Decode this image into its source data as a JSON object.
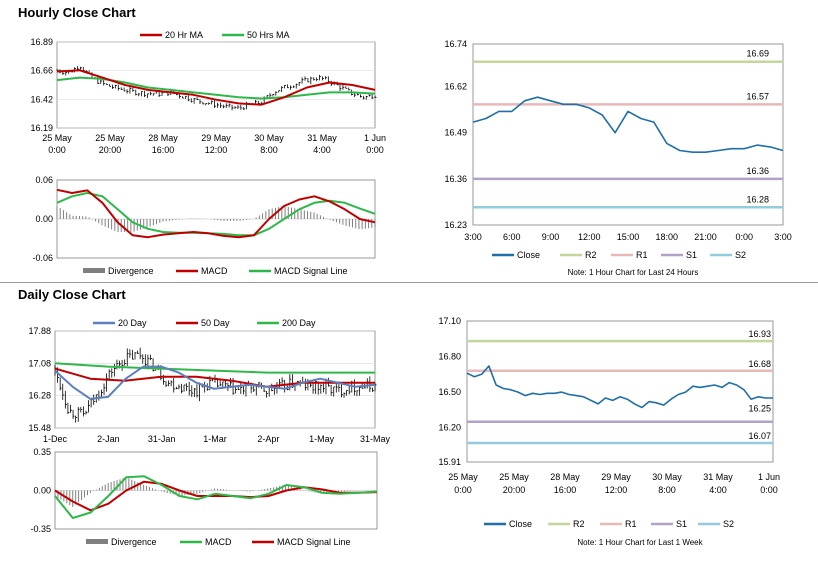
{
  "hourly": {
    "title": "Hourly Close Chart",
    "price": {
      "legend": [
        "20 Hr MA",
        "50 Hrs MA"
      ],
      "yticks": [
        "16.89",
        "16.66",
        "16.42",
        "16.19"
      ],
      "xticks": [
        [
          "25 May",
          "0:00"
        ],
        [
          "25 May",
          "20:00"
        ],
        [
          "28 May",
          "16:00"
        ],
        [
          "29 May",
          "12:00"
        ],
        [
          "30 May",
          "8:00"
        ],
        [
          "31 May",
          "4:00"
        ],
        [
          "1 Jun",
          "0:00"
        ]
      ]
    },
    "macd": {
      "yticks": [
        "0.06",
        "0.00",
        "-0.06"
      ],
      "legend": [
        "Divergence",
        "MACD",
        "MACD Signal Line"
      ]
    },
    "levels_chart": {
      "yticks": [
        "16.74",
        "16.62",
        "16.49",
        "16.36",
        "16.23"
      ],
      "xticks": [
        "3:00",
        "6:00",
        "9:00",
        "12:00",
        "15:00",
        "18:00",
        "21:00",
        "0:00",
        "3:00"
      ],
      "levels": [
        {
          "name": "R2",
          "value": "16.69",
          "color": "#c3d69b"
        },
        {
          "name": "R1",
          "value": "16.57",
          "color": "#e6b9b8"
        },
        {
          "name": "S1",
          "value": "16.36",
          "color": "#b3a2c7"
        },
        {
          "name": "S2",
          "value": "16.28",
          "color": "#93cddd"
        }
      ],
      "legend": [
        "Close",
        "R2",
        "R1",
        "S1",
        "S2"
      ],
      "note": "Note: 1 Hour Chart for Last 24 Hours"
    }
  },
  "daily": {
    "title": "Daily Close Chart",
    "price": {
      "legend": [
        "20 Day",
        "50 Day",
        "200 Day"
      ],
      "yticks": [
        "17.88",
        "17.08",
        "16.28",
        "15.48"
      ],
      "xticks": [
        "1-Dec",
        "2-Jan",
        "31-Jan",
        "1-Mar",
        "2-Apr",
        "1-May",
        "31-May"
      ]
    },
    "macd": {
      "yticks": [
        "0.35",
        "0.00",
        "-0.35"
      ],
      "legend": [
        "Divergence",
        "MACD",
        "MACD Signal Line"
      ]
    },
    "levels_chart": {
      "yticks": [
        "17.10",
        "16.80",
        "16.50",
        "16.20",
        "15.91"
      ],
      "xticks": [
        [
          "25 May",
          "0:00"
        ],
        [
          "25 May",
          "20:00"
        ],
        [
          "28 May",
          "16:00"
        ],
        [
          "29 May",
          "12:00"
        ],
        [
          "30 May",
          "8:00"
        ],
        [
          "31 May",
          "4:00"
        ],
        [
          "1 Jun",
          "0:00"
        ]
      ],
      "levels": [
        {
          "name": "R2",
          "value": "16.93",
          "color": "#c3d69b"
        },
        {
          "name": "R1",
          "value": "16.68",
          "color": "#e6b9b8"
        },
        {
          "name": "S1",
          "value": "16.25",
          "color": "#b3a2c7"
        },
        {
          "name": "S2",
          "value": "16.07",
          "color": "#93cddd"
        }
      ],
      "legend": [
        "Close",
        "R2",
        "R1",
        "S1",
        "S2"
      ],
      "note": "Note: 1 Hour Chart for Last 1 Week"
    }
  },
  "colors": {
    "ma_short": "#c00000",
    "ma_mid": "#2eb84a",
    "ma_blue": "#5b7fbf",
    "close": "#1f6fa8",
    "divergence": "#7f7f7f",
    "axis": "#808080"
  },
  "chart_data": [
    {
      "id": "hourly-price",
      "type": "line",
      "title": "Hourly Close Chart",
      "ylim": [
        16.19,
        16.89
      ],
      "x_range_hours": [
        0,
        168
      ],
      "series": [
        {
          "name": "Price (OHLC bars)",
          "x_hours": [
            0,
            6,
            12,
            18,
            24,
            30,
            36,
            42,
            48,
            54,
            60,
            66,
            72,
            78,
            84,
            90,
            96,
            102,
            108,
            114,
            120,
            126,
            132,
            138,
            144,
            150,
            156,
            162,
            168
          ],
          "values": [
            16.66,
            16.64,
            16.7,
            16.6,
            16.55,
            16.52,
            16.5,
            16.48,
            16.47,
            16.47,
            16.48,
            16.45,
            16.42,
            16.4,
            16.38,
            16.36,
            16.35,
            16.38,
            16.4,
            16.48,
            16.52,
            16.55,
            16.58,
            16.6,
            16.57,
            16.52,
            16.47,
            16.44,
            16.46
          ]
        },
        {
          "name": "20 Hr MA",
          "x_hours": [
            0,
            12,
            24,
            36,
            48,
            60,
            72,
            84,
            96,
            108,
            120,
            132,
            144,
            156,
            168
          ],
          "values": [
            16.65,
            16.66,
            16.6,
            16.54,
            16.5,
            16.48,
            16.46,
            16.42,
            16.39,
            16.38,
            16.44,
            16.52,
            16.56,
            16.54,
            16.5
          ]
        },
        {
          "name": "50 Hrs MA",
          "x_hours": [
            0,
            12,
            24,
            36,
            48,
            60,
            72,
            84,
            96,
            108,
            120,
            132,
            144,
            156,
            168
          ],
          "values": [
            16.58,
            16.6,
            16.59,
            16.56,
            16.52,
            16.5,
            16.48,
            16.46,
            16.44,
            16.43,
            16.44,
            16.46,
            16.48,
            16.48,
            16.47
          ]
        }
      ]
    },
    {
      "id": "hourly-macd",
      "type": "line",
      "ylim": [
        -0.06,
        0.06
      ],
      "x_range_hours": [
        0,
        168
      ],
      "series": [
        {
          "name": "MACD",
          "x_hours": [
            0,
            8,
            16,
            24,
            32,
            40,
            48,
            56,
            64,
            72,
            80,
            88,
            96,
            104,
            112,
            120,
            128,
            136,
            144,
            152,
            160,
            168
          ],
          "values": [
            0.045,
            0.04,
            0.044,
            0.025,
            -0.005,
            -0.025,
            -0.028,
            -0.024,
            -0.022,
            -0.02,
            -0.022,
            -0.026,
            -0.028,
            -0.025,
            0.0,
            0.02,
            0.03,
            0.035,
            0.027,
            0.015,
            0.0,
            -0.005
          ]
        },
        {
          "name": "MACD Signal Line",
          "x_hours": [
            0,
            8,
            16,
            24,
            32,
            40,
            48,
            56,
            64,
            72,
            80,
            88,
            96,
            104,
            112,
            120,
            128,
            136,
            144,
            152,
            160,
            168
          ],
          "values": [
            0.025,
            0.035,
            0.04,
            0.035,
            0.015,
            -0.005,
            -0.015,
            -0.02,
            -0.021,
            -0.021,
            -0.022,
            -0.023,
            -0.025,
            -0.025,
            -0.015,
            0.0,
            0.015,
            0.025,
            0.028,
            0.025,
            0.016,
            0.008
          ]
        },
        {
          "name": "Divergence",
          "x_hours": [
            0,
            8,
            16,
            24,
            32,
            40,
            48,
            56,
            64,
            72,
            80,
            88,
            96,
            104,
            112,
            120,
            128,
            136,
            144,
            152,
            160,
            168
          ],
          "values": [
            0.02,
            0.005,
            0.004,
            -0.01,
            -0.02,
            -0.02,
            -0.013,
            -0.004,
            -0.001,
            0.001,
            0.0,
            -0.003,
            -0.003,
            0.0,
            0.015,
            0.02,
            0.015,
            0.01,
            -0.001,
            -0.01,
            -0.016,
            -0.013
          ]
        }
      ]
    },
    {
      "id": "hourly-levels",
      "type": "line",
      "ylim": [
        16.23,
        16.74
      ],
      "x_range_hours": [
        0,
        24
      ],
      "x_tick_labels": [
        "3:00",
        "6:00",
        "9:00",
        "12:00",
        "15:00",
        "18:00",
        "21:00",
        "0:00",
        "3:00"
      ],
      "series": [
        {
          "name": "Close",
          "x_hours": [
            0,
            1,
            2,
            3,
            4,
            5,
            6,
            7,
            8,
            9,
            10,
            11,
            12,
            13,
            14,
            15,
            16,
            17,
            18,
            19,
            20,
            21,
            22,
            23,
            24
          ],
          "values": [
            16.52,
            16.53,
            16.55,
            16.55,
            16.58,
            16.59,
            16.58,
            16.57,
            16.57,
            16.56,
            16.54,
            16.49,
            16.55,
            16.53,
            16.52,
            16.46,
            16.44,
            16.435,
            16.435,
            16.44,
            16.445,
            16.445,
            16.455,
            16.45,
            16.44
          ]
        },
        {
          "name": "R2",
          "values": [
            16.69
          ]
        },
        {
          "name": "R1",
          "values": [
            16.57
          ]
        },
        {
          "name": "S1",
          "values": [
            16.36
          ]
        },
        {
          "name": "S2",
          "values": [
            16.28
          ]
        }
      ]
    },
    {
      "id": "daily-price",
      "type": "line",
      "title": "Daily Close Chart",
      "ylim": [
        15.48,
        17.88
      ],
      "x_range_days": [
        0,
        181
      ],
      "series": [
        {
          "name": "Price (OHLC bars)",
          "x_days": [
            0,
            8,
            16,
            24,
            32,
            40,
            48,
            56,
            64,
            72,
            80,
            88,
            96,
            104,
            112,
            120,
            128,
            136,
            144,
            152,
            160,
            168,
            176,
            181
          ],
          "values": [
            16.9,
            15.9,
            15.8,
            16.3,
            16.9,
            17.2,
            17.3,
            17.0,
            16.6,
            16.5,
            16.4,
            16.6,
            16.5,
            16.4,
            16.5,
            16.4,
            16.5,
            16.6,
            16.5,
            16.5,
            16.4,
            16.5,
            16.5,
            16.5
          ]
        },
        {
          "name": "20 Day",
          "x_days": [
            0,
            10,
            20,
            30,
            40,
            50,
            60,
            70,
            80,
            90,
            100,
            110,
            120,
            130,
            140,
            150,
            160,
            170,
            181
          ],
          "values": [
            16.9,
            16.5,
            16.2,
            16.25,
            16.7,
            17.0,
            17.0,
            16.85,
            16.6,
            16.45,
            16.5,
            16.55,
            16.5,
            16.45,
            16.6,
            16.7,
            16.6,
            16.5,
            16.55
          ]
        },
        {
          "name": "50 Day",
          "x_days": [
            0,
            20,
            40,
            60,
            80,
            100,
            120,
            140,
            160,
            181
          ],
          "values": [
            16.95,
            16.7,
            16.65,
            16.75,
            16.75,
            16.65,
            16.5,
            16.6,
            16.6,
            16.6
          ]
        },
        {
          "name": "200 Day",
          "x_days": [
            0,
            30,
            60,
            90,
            120,
            150,
            181
          ],
          "values": [
            17.08,
            17.0,
            16.95,
            16.9,
            16.85,
            16.85,
            16.85
          ]
        }
      ]
    },
    {
      "id": "daily-macd",
      "type": "line",
      "ylim": [
        -0.35,
        0.35
      ],
      "x_range_days": [
        0,
        181
      ],
      "series": [
        {
          "name": "MACD",
          "x_days": [
            0,
            10,
            20,
            30,
            40,
            50,
            60,
            70,
            80,
            90,
            100,
            110,
            120,
            130,
            140,
            150,
            160,
            170,
            181
          ],
          "values": [
            -0.05,
            -0.25,
            -0.2,
            -0.05,
            0.12,
            0.13,
            0.05,
            -0.05,
            -0.08,
            -0.03,
            -0.05,
            -0.07,
            -0.03,
            0.05,
            0.03,
            -0.02,
            -0.03,
            -0.02,
            -0.01
          ]
        },
        {
          "name": "MACD Signal Line",
          "x_days": [
            0,
            10,
            20,
            30,
            40,
            50,
            60,
            70,
            80,
            90,
            100,
            110,
            120,
            130,
            140,
            150,
            160,
            170,
            181
          ],
          "values": [
            0.0,
            -0.1,
            -0.18,
            -0.12,
            0.0,
            0.08,
            0.06,
            0.0,
            -0.05,
            -0.05,
            -0.05,
            -0.06,
            -0.05,
            0.0,
            0.03,
            0.01,
            -0.02,
            -0.02,
            -0.015
          ]
        },
        {
          "name": "Divergence",
          "x_days": [
            0,
            10,
            20,
            30,
            40,
            50,
            60,
            70,
            80,
            90,
            100,
            110,
            120,
            130,
            140,
            150,
            160,
            170,
            181
          ],
          "values": [
            -0.05,
            -0.15,
            -0.02,
            0.07,
            0.12,
            0.05,
            -0.01,
            -0.05,
            -0.03,
            0.02,
            0.0,
            -0.01,
            0.02,
            0.05,
            0.0,
            -0.03,
            -0.01,
            0.0,
            0.005
          ]
        }
      ]
    },
    {
      "id": "daily-levels",
      "type": "line",
      "ylim": [
        15.91,
        17.1
      ],
      "x_range_hours": [
        0,
        168
      ],
      "series": [
        {
          "name": "Close",
          "x_hours": [
            0,
            4,
            8,
            12,
            16,
            20,
            24,
            28,
            32,
            36,
            40,
            44,
            48,
            52,
            56,
            60,
            64,
            68,
            72,
            76,
            80,
            84,
            88,
            92,
            96,
            100,
            104,
            108,
            112,
            116,
            120,
            124,
            128,
            132,
            136,
            140,
            144,
            148,
            152,
            156,
            160,
            164,
            168
          ],
          "values": [
            16.66,
            16.63,
            16.65,
            16.72,
            16.56,
            16.53,
            16.52,
            16.5,
            16.47,
            16.49,
            16.48,
            16.49,
            16.49,
            16.5,
            16.48,
            16.47,
            16.46,
            16.43,
            16.4,
            16.45,
            16.43,
            16.46,
            16.44,
            16.4,
            16.37,
            16.42,
            16.41,
            16.39,
            16.44,
            16.48,
            16.5,
            16.55,
            16.54,
            16.55,
            16.56,
            16.54,
            16.58,
            16.56,
            16.52,
            16.44,
            16.46,
            16.45,
            16.45
          ]
        },
        {
          "name": "R2",
          "values": [
            16.93
          ]
        },
        {
          "name": "R1",
          "values": [
            16.68
          ]
        },
        {
          "name": "S1",
          "values": [
            16.25
          ]
        },
        {
          "name": "S2",
          "values": [
            16.07
          ]
        }
      ]
    }
  ]
}
